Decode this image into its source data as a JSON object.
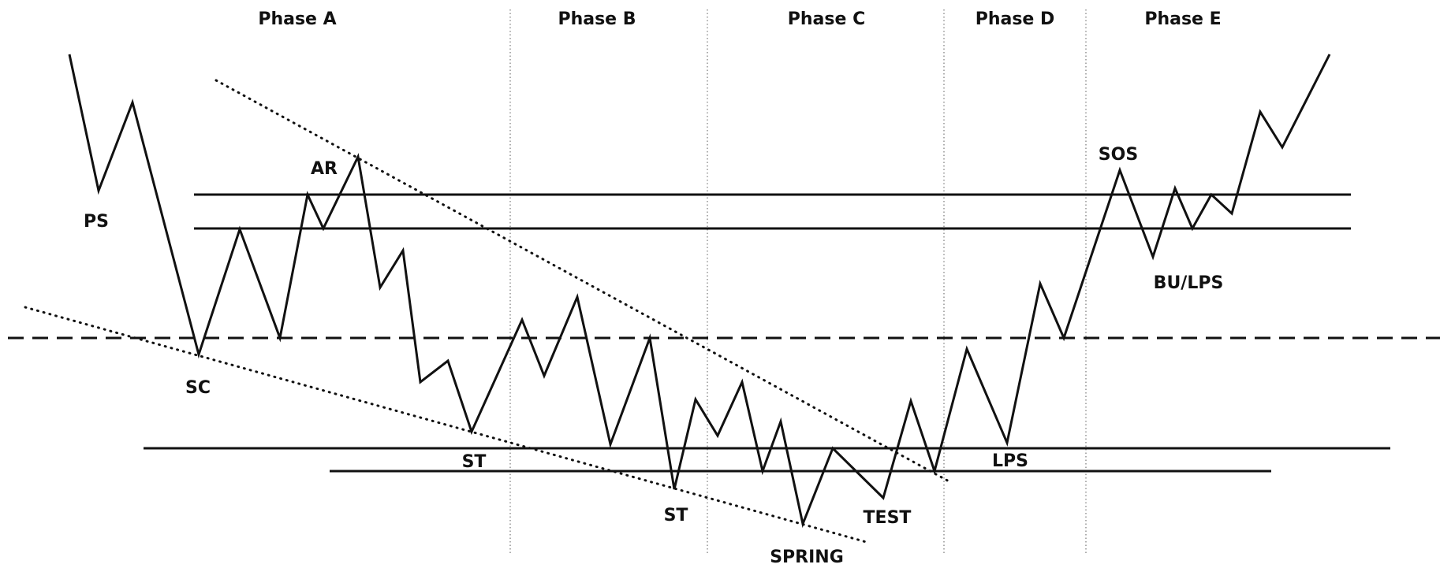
{
  "phases": {
    "a": "Phase A",
    "b": "Phase B",
    "c": "Phase C",
    "d": "Phase D",
    "e": "Phase E"
  },
  "labels": {
    "ps": "PS",
    "sc": "SC",
    "ar": "AR",
    "st1": "ST",
    "st2": "ST",
    "spring": "SPRING",
    "test": "TEST",
    "lps": "LPS",
    "sos": "SOS",
    "bu_lps": "BU/LPS"
  },
  "colors": {
    "line": "#111111",
    "divider": "#777777",
    "background": "#ffffff"
  }
}
